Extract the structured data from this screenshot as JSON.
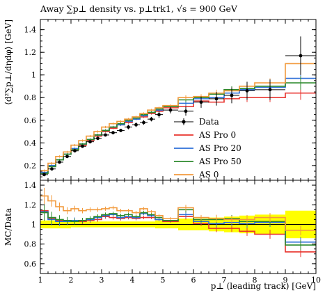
{
  "chart_data": [
    {
      "panel": "main",
      "type": "line",
      "title": "Away ∑p⊥ density vs. p⊥trk1, √s = 900 GeV",
      "xlabel": "",
      "ylabel": "⟨d²∑p⊥/dηdφ⟩ [GeV]",
      "xlim": [
        1,
        10
      ],
      "ylim": [
        0.07,
        1.49
      ],
      "x_ticks": [
        "1",
        "2",
        "3",
        "4",
        "5",
        "6",
        "7",
        "8",
        "9",
        "10"
      ],
      "y_ticks": [
        "0.2",
        "0.4",
        "0.6",
        "0.8",
        "1",
        "1.2",
        "1.4"
      ],
      "bin_edges": [
        1.0,
        1.25,
        1.5,
        1.75,
        2.0,
        2.25,
        2.5,
        2.75,
        3.0,
        3.25,
        3.5,
        3.75,
        4.0,
        4.25,
        4.5,
        4.75,
        5.0,
        5.5,
        6.0,
        6.5,
        7.0,
        7.5,
        8.0,
        9.0,
        10.0
      ],
      "data": {
        "name": "Data",
        "x": [
          1.125,
          1.375,
          1.625,
          1.875,
          2.125,
          2.375,
          2.625,
          2.875,
          3.125,
          3.375,
          3.625,
          3.875,
          4.125,
          4.375,
          4.625,
          4.875,
          5.25,
          5.75,
          6.25,
          6.75,
          7.25,
          7.75,
          8.5,
          9.5
        ],
        "y": [
          0.12,
          0.17,
          0.23,
          0.28,
          0.33,
          0.37,
          0.41,
          0.44,
          0.47,
          0.49,
          0.51,
          0.54,
          0.56,
          0.58,
          0.61,
          0.65,
          0.69,
          0.68,
          0.76,
          0.79,
          0.82,
          0.86,
          0.87,
          1.17
        ],
        "err": [
          0.01,
          0.01,
          0.01,
          0.01,
          0.01,
          0.01,
          0.01,
          0.01,
          0.01,
          0.01,
          0.01,
          0.02,
          0.02,
          0.02,
          0.02,
          0.03,
          0.03,
          0.04,
          0.05,
          0.06,
          0.07,
          0.08,
          0.09,
          0.17
        ]
      },
      "series": [
        {
          "name": "AS Pro 0",
          "color": "#e8322c",
          "values": [
            0.14,
            0.2,
            0.25,
            0.3,
            0.34,
            0.38,
            0.42,
            0.46,
            0.5,
            0.53,
            0.56,
            0.58,
            0.61,
            0.63,
            0.66,
            0.68,
            0.71,
            0.72,
            0.77,
            0.76,
            0.79,
            0.8,
            0.8,
            0.84
          ],
          "err": [
            0.01,
            0.01,
            0.01,
            0.01,
            0.01,
            0.01,
            0.01,
            0.01,
            0.01,
            0.01,
            0.01,
            0.01,
            0.01,
            0.01,
            0.01,
            0.01,
            0.01,
            0.02,
            0.02,
            0.03,
            0.03,
            0.04,
            0.04,
            0.06
          ]
        },
        {
          "name": "AS Pro 20",
          "color": "#2d6fd8",
          "values": [
            0.14,
            0.2,
            0.25,
            0.3,
            0.35,
            0.39,
            0.43,
            0.47,
            0.51,
            0.54,
            0.56,
            0.59,
            0.61,
            0.64,
            0.67,
            0.69,
            0.72,
            0.75,
            0.79,
            0.8,
            0.84,
            0.87,
            0.89,
            0.97
          ],
          "err": [
            0.01,
            0.01,
            0.01,
            0.01,
            0.01,
            0.01,
            0.01,
            0.01,
            0.01,
            0.01,
            0.01,
            0.01,
            0.01,
            0.01,
            0.01,
            0.01,
            0.01,
            0.02,
            0.02,
            0.03,
            0.03,
            0.04,
            0.04,
            0.06
          ]
        },
        {
          "name": "AS Pro 50",
          "color": "#2d8a2d",
          "values": [
            0.13,
            0.19,
            0.25,
            0.3,
            0.34,
            0.39,
            0.43,
            0.47,
            0.51,
            0.54,
            0.57,
            0.6,
            0.62,
            0.65,
            0.67,
            0.7,
            0.72,
            0.78,
            0.8,
            0.83,
            0.87,
            0.88,
            0.9,
            0.93
          ],
          "err": [
            0.01,
            0.01,
            0.01,
            0.01,
            0.01,
            0.01,
            0.01,
            0.01,
            0.01,
            0.01,
            0.01,
            0.01,
            0.01,
            0.01,
            0.01,
            0.01,
            0.01,
            0.02,
            0.02,
            0.03,
            0.03,
            0.04,
            0.04,
            0.06
          ]
        },
        {
          "name": "AS 0",
          "color": "#f29a3c",
          "values": [
            0.155,
            0.22,
            0.28,
            0.32,
            0.38,
            0.42,
            0.46,
            0.5,
            0.54,
            0.57,
            0.59,
            0.61,
            0.63,
            0.66,
            0.69,
            0.71,
            0.73,
            0.8,
            0.81,
            0.84,
            0.86,
            0.9,
            0.93,
            1.1
          ],
          "err": [
            0.01,
            0.01,
            0.01,
            0.01,
            0.01,
            0.01,
            0.01,
            0.01,
            0.01,
            0.01,
            0.01,
            0.01,
            0.01,
            0.01,
            0.01,
            0.01,
            0.01,
            0.02,
            0.02,
            0.03,
            0.03,
            0.04,
            0.04,
            0.06
          ]
        }
      ],
      "legend_entries": [
        "Data",
        "AS Pro 0",
        "AS Pro 20",
        "AS Pro 50",
        "AS 0"
      ],
      "legend_position": "lower-right",
      "colors": {
        "data": "#000000",
        "band": "#ffff00"
      }
    },
    {
      "panel": "ratio",
      "type": "line",
      "xlabel": "p⊥ (leading track) [GeV]",
      "ylabel": "MC/Data",
      "xlim": [
        1,
        10
      ],
      "ylim": [
        0.5,
        1.45
      ],
      "x_ticks": [
        "1",
        "2",
        "3",
        "4",
        "5",
        "6",
        "7",
        "8",
        "9",
        "10"
      ],
      "y_ticks": [
        "0.6",
        "0.8",
        "1",
        "1.2",
        "1.4"
      ],
      "data_band_halfwidth": [
        0.04,
        0.04,
        0.04,
        0.04,
        0.03,
        0.03,
        0.03,
        0.03,
        0.03,
        0.03,
        0.03,
        0.03,
        0.03,
        0.03,
        0.03,
        0.04,
        0.04,
        0.06,
        0.06,
        0.07,
        0.08,
        0.09,
        0.1,
        0.14
      ],
      "series": [
        {
          "name": "AS Pro 0",
          "color": "#e8322c",
          "values": [
            1.14,
            1.06,
            1.04,
            1.03,
            1.03,
            1.03,
            1.04,
            1.05,
            1.08,
            1.07,
            1.06,
            1.07,
            1.06,
            1.07,
            1.07,
            1.05,
            1.03,
            1.08,
            1.01,
            0.96,
            0.96,
            0.93,
            0.9,
            0.72
          ]
        },
        {
          "name": "AS Pro 20",
          "color": "#2d6fd8",
          "values": [
            1.13,
            1.05,
            1.03,
            1.03,
            1.04,
            1.04,
            1.05,
            1.07,
            1.09,
            1.1,
            1.07,
            1.08,
            1.07,
            1.11,
            1.09,
            1.05,
            1.04,
            1.1,
            1.03,
            1.01,
            1.02,
            1.01,
            1.02,
            0.82
          ]
        },
        {
          "name": "AS Pro 50",
          "color": "#2d8a2d",
          "values": [
            1.12,
            1.07,
            1.05,
            1.04,
            1.03,
            1.04,
            1.06,
            1.08,
            1.1,
            1.11,
            1.09,
            1.1,
            1.08,
            1.12,
            1.1,
            1.07,
            1.04,
            1.15,
            1.05,
            1.05,
            1.06,
            1.03,
            1.03,
            0.79
          ]
        },
        {
          "name": "AS 0",
          "color": "#f29a3c",
          "values": [
            1.29,
            1.24,
            1.18,
            1.14,
            1.16,
            1.14,
            1.15,
            1.15,
            1.16,
            1.17,
            1.14,
            1.14,
            1.12,
            1.16,
            1.13,
            1.09,
            1.06,
            1.17,
            1.07,
            1.06,
            1.05,
            1.05,
            1.07,
            0.94
          ]
        }
      ]
    }
  ]
}
